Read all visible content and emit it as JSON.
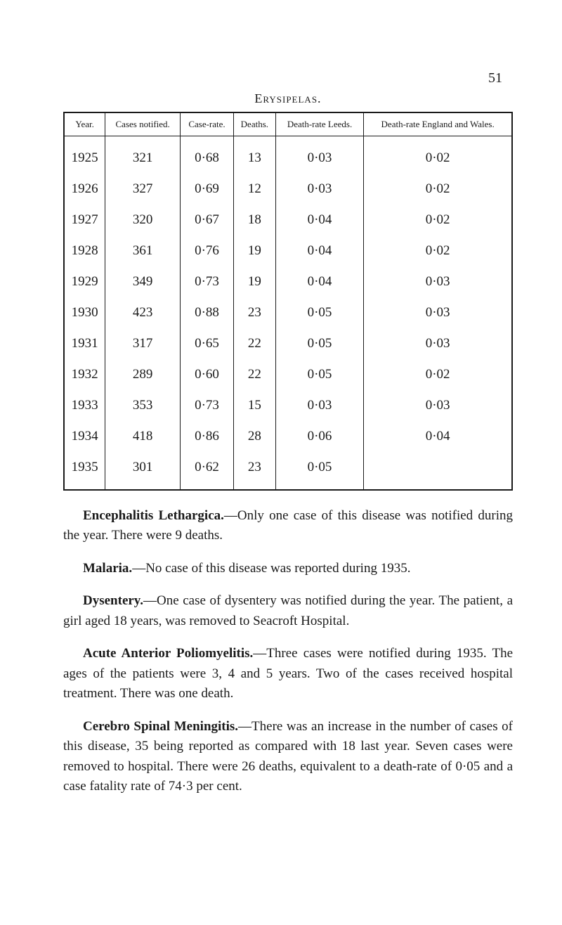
{
  "page_number": "51",
  "table": {
    "title": "Erysipelas.",
    "columns": [
      "Year.",
      "Cases notified.",
      "Case-rate.",
      "Deaths.",
      "Death-rate Leeds.",
      "Death-rate England and Wales."
    ],
    "rows": [
      [
        "1925",
        "321",
        "0·68",
        "13",
        "0·03",
        "0·02"
      ],
      [
        "1926",
        "327",
        "0·69",
        "12",
        "0·03",
        "0·02"
      ],
      [
        "1927",
        "320",
        "0·67",
        "18",
        "0·04",
        "0·02"
      ],
      [
        "1928",
        "361",
        "0·76",
        "19",
        "0·04",
        "0·02"
      ],
      [
        "1929",
        "349",
        "0·73",
        "19",
        "0·04",
        "0·03"
      ],
      [
        "1930",
        "423",
        "0·88",
        "23",
        "0·05",
        "0·03"
      ],
      [
        "1931",
        "317",
        "0·65",
        "22",
        "0·05",
        "0·03"
      ],
      [
        "1932",
        "289",
        "0·60",
        "22",
        "0·05",
        "0·02"
      ],
      [
        "1933",
        "353",
        "0·73",
        "15",
        "0·03",
        "0·03"
      ],
      [
        "1934",
        "418",
        "0·86",
        "28",
        "0·06",
        "0·04"
      ],
      [
        "1935",
        "301",
        "0·62",
        "23",
        "0·05",
        ""
      ]
    ]
  },
  "paragraphs": [
    {
      "heading": "Encephalitis Lethargica.",
      "text": "—Only one case of this disease was notified during the year. There were 9 deaths."
    },
    {
      "heading": "Malaria.",
      "text": "—No case of this disease was reported during 1935."
    },
    {
      "heading": "Dysentery.",
      "text": "—One case of dysentery was notified during the year. The patient, a girl aged 18 years, was removed to Seacroft Hospital."
    },
    {
      "heading": "Acute Anterior Poliomyelitis.",
      "text": "—Three cases were notified during 1935. The ages of the patients were 3, 4 and 5 years. Two of the cases received hospital treatment. There was one death."
    },
    {
      "heading": "Cerebro Spinal Meningitis.",
      "text": "—There was an increase in the number of cases of this disease, 35 being reported as compared with 18 last year. Seven cases were removed to hospital. There were 26 deaths, equivalent to a death-rate of 0·05 and a case fatality rate of 74·3 per cent."
    }
  ]
}
